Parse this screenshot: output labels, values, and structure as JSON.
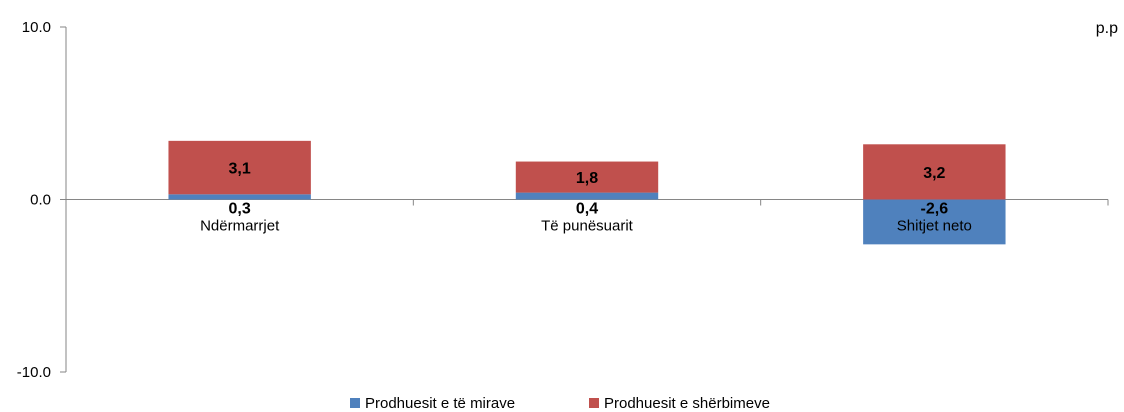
{
  "chart_data": {
    "type": "bar",
    "stacked": true,
    "unit_label": "p.p",
    "categories": [
      "Ndërmarrjet",
      "Të  punësuarit",
      "Shitjet neto"
    ],
    "series": [
      {
        "name": "Prodhuesit e të mirave",
        "values": [
          0.3,
          0.4,
          -2.6
        ],
        "labels": [
          "0,3",
          "0,4",
          "-2,6"
        ],
        "color": "#4F81BD"
      },
      {
        "name": "Prodhuesit e shërbimeve",
        "values": [
          3.1,
          1.8,
          3.2
        ],
        "labels": [
          "3,1",
          "1,8",
          "3,2"
        ],
        "color": "#C0504D"
      }
    ],
    "ylim": [
      -10,
      10
    ],
    "yticks": [
      10,
      0,
      -10
    ],
    "ytick_labels": [
      "10.0",
      "0.0",
      "-10.0"
    ],
    "legend_position": "bottom",
    "grid": false
  }
}
